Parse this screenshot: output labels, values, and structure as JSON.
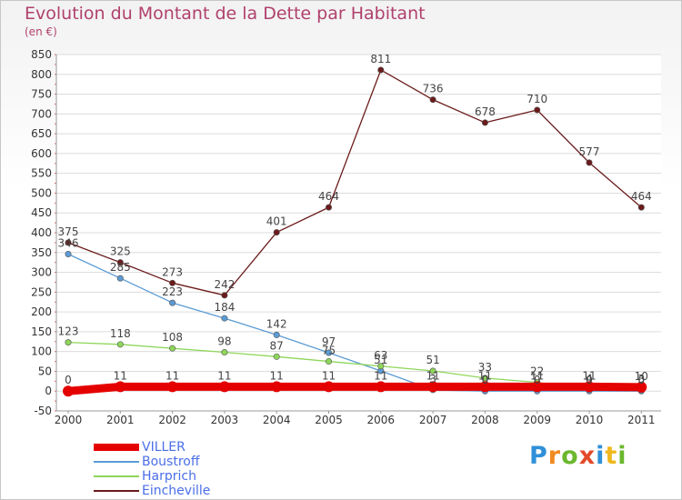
{
  "title": "Evolution du Montant de la Dette par Habitant",
  "subtitle": "(en €)",
  "logo": {
    "text": "Proxiti",
    "letter_colors": [
      "#2f8fd8",
      "#f08a1e",
      "#6bb82e",
      "#e24b2a",
      "#2f8fd8",
      "#f0b81e",
      "#6bb82e"
    ]
  },
  "chart_data": {
    "type": "line",
    "x": [
      "2000",
      "2001",
      "2002",
      "2003",
      "2004",
      "2005",
      "2006",
      "2007",
      "2008",
      "2009",
      "2010",
      "2011"
    ],
    "ylim": [
      -50,
      850
    ],
    "yticks": [
      -50,
      0,
      50,
      100,
      150,
      200,
      250,
      300,
      350,
      400,
      450,
      500,
      550,
      600,
      650,
      700,
      750,
      800,
      850
    ],
    "grid": true,
    "legend_position": "bottom-left",
    "series": [
      {
        "name": "VILLER",
        "color": "#e50000",
        "values": [
          0,
          11,
          11,
          11,
          11,
          11,
          11,
          11,
          11,
          11,
          11,
          10
        ],
        "labels": [
          "0",
          "11",
          "11",
          "11",
          "11",
          "11",
          "11",
          "11",
          "11",
          "11",
          "11",
          "10"
        ],
        "emphasis": true
      },
      {
        "name": "Boustroff",
        "color": "#5b9bd5",
        "values": [
          346,
          285,
          223,
          184,
          142,
          97,
          51,
          3,
          0,
          0,
          0,
          0
        ],
        "labels": [
          "346",
          "285",
          "223",
          "184",
          "142",
          "97",
          "51",
          "3",
          "0",
          "0",
          "0",
          "0"
        ]
      },
      {
        "name": "Harprich",
        "color": "#8ed65a",
        "values": [
          123,
          118,
          108,
          98,
          87,
          75,
          63,
          51,
          33,
          22,
          4,
          3
        ],
        "labels": [
          "123",
          "118",
          "108",
          "98",
          "87",
          "75",
          "63",
          "51",
          "33",
          "22",
          "4",
          "3"
        ]
      },
      {
        "name": "Eincheville",
        "color": "#6b1b1b",
        "values": [
          375,
          325,
          273,
          242,
          401,
          464,
          811,
          736,
          678,
          710,
          577,
          464
        ],
        "labels": [
          "375",
          "325",
          "273",
          "242",
          "401",
          "464",
          "811",
          "736",
          "678",
          "710",
          "577",
          "464"
        ]
      }
    ]
  }
}
